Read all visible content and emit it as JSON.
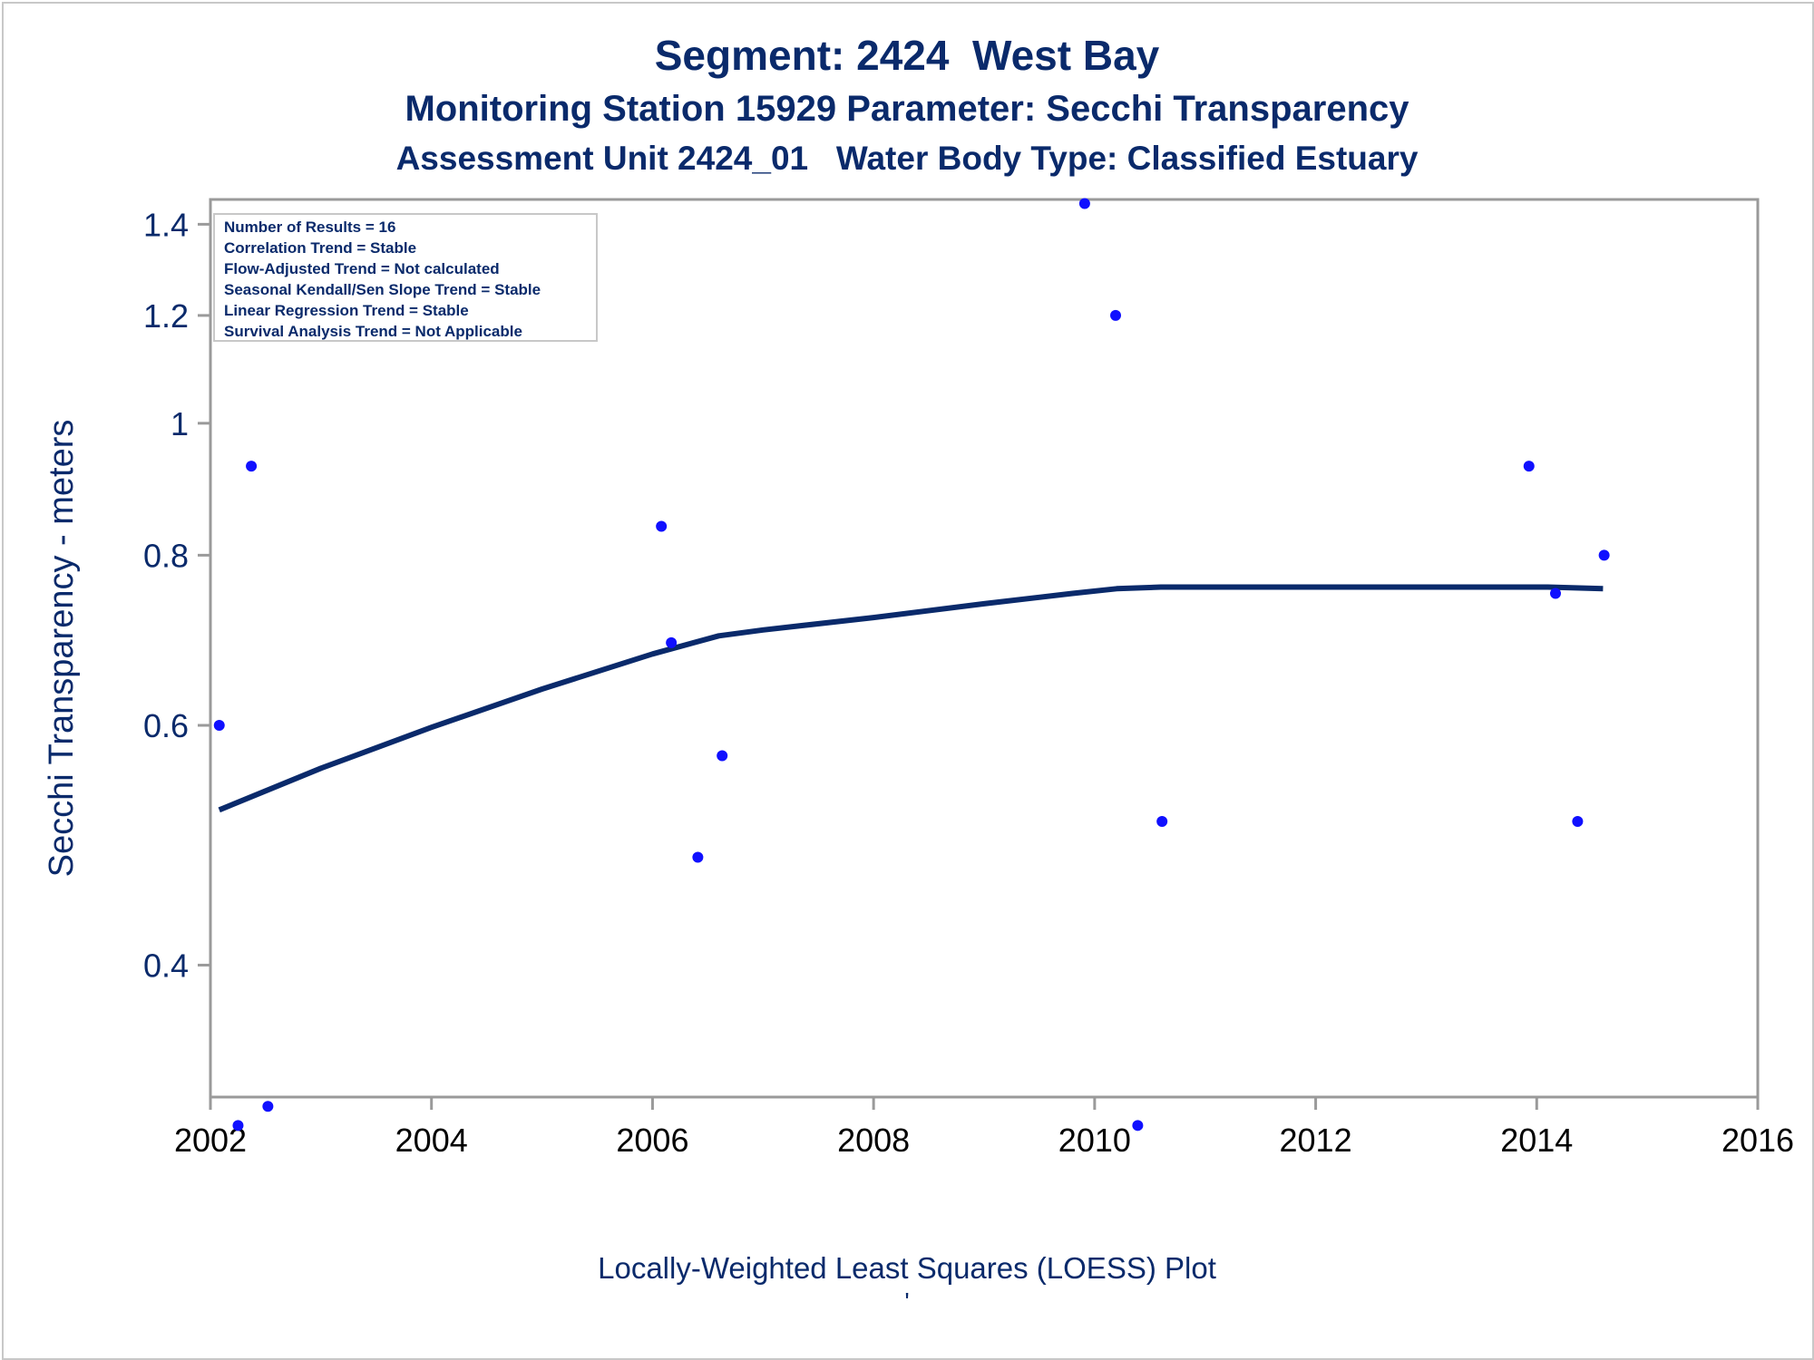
{
  "titles": {
    "line1": "Segment: 2424  West Bay",
    "line2": "Monitoring Station 15929 Parameter: Secchi Transparency",
    "line3": "Assessment Unit 2424_01   Water Body Type: Classified Estuary"
  },
  "footnote": {
    "text": "Locally-Weighted Least Squares (LOESS) Plot",
    "mark": "'"
  },
  "stats_box": [
    "Number of Results = 16",
    "Correlation Trend = Stable",
    "Flow-Adjusted Trend = Not calculated",
    "Seasonal Kendall/Sen Slope Trend = Stable",
    "Linear Regression Trend = Stable",
    "Survival Analysis Trend = Not Applicable"
  ],
  "colors": {
    "text": "#0a2a6b",
    "points": "#1010ff",
    "line": "#0a2a6b",
    "axis": "#9a9a9a"
  },
  "chart_data": {
    "type": "scatter",
    "title": "",
    "xlabel": "",
    "ylabel": "Secchi Transparency - meters",
    "yscale": "log",
    "xlim": [
      2002,
      2016
    ],
    "ylim": [
      0.32,
      1.46
    ],
    "xticks": [
      2002,
      2004,
      2006,
      2008,
      2010,
      2012,
      2014,
      2016
    ],
    "yticks": [
      0.4,
      0.6,
      0.8,
      1.0,
      1.2,
      1.4
    ],
    "ytick_labels": [
      "0.4",
      "0.6",
      "0.8",
      "1",
      "1.2",
      "1.4"
    ],
    "grid": false,
    "points": [
      {
        "x": 2002.08,
        "y": 0.6
      },
      {
        "x": 2002.25,
        "y": 0.305
      },
      {
        "x": 2002.37,
        "y": 0.93
      },
      {
        "x": 2002.52,
        "y": 0.315
      },
      {
        "x": 2006.08,
        "y": 0.84
      },
      {
        "x": 2006.17,
        "y": 0.69
      },
      {
        "x": 2006.41,
        "y": 0.48
      },
      {
        "x": 2006.63,
        "y": 0.57
      },
      {
        "x": 2009.91,
        "y": 1.45
      },
      {
        "x": 2010.19,
        "y": 1.2
      },
      {
        "x": 2010.39,
        "y": 0.305
      },
      {
        "x": 2010.61,
        "y": 0.51
      },
      {
        "x": 2013.93,
        "y": 0.93
      },
      {
        "x": 2014.17,
        "y": 0.75
      },
      {
        "x": 2014.37,
        "y": 0.51
      },
      {
        "x": 2014.61,
        "y": 0.8
      }
    ],
    "loess": [
      {
        "x": 2002.08,
        "y": 0.52
      },
      {
        "x": 2003.0,
        "y": 0.558
      },
      {
        "x": 2004.0,
        "y": 0.598
      },
      {
        "x": 2005.0,
        "y": 0.638
      },
      {
        "x": 2006.0,
        "y": 0.677
      },
      {
        "x": 2006.6,
        "y": 0.698
      },
      {
        "x": 2007.0,
        "y": 0.705
      },
      {
        "x": 2008.0,
        "y": 0.72
      },
      {
        "x": 2009.0,
        "y": 0.737
      },
      {
        "x": 2009.8,
        "y": 0.75
      },
      {
        "x": 2010.2,
        "y": 0.756
      },
      {
        "x": 2010.6,
        "y": 0.758
      },
      {
        "x": 2012.0,
        "y": 0.758
      },
      {
        "x": 2014.1,
        "y": 0.758
      },
      {
        "x": 2014.6,
        "y": 0.756
      }
    ]
  }
}
